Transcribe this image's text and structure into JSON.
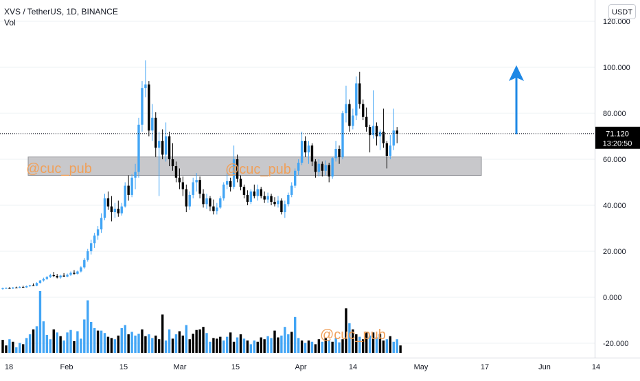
{
  "header": {
    "symbol_line": "XVS / TetherUS, 1D, BINANCE",
    "indicator_label": "Vol",
    "currency_button": "USDT"
  },
  "price_tag": {
    "value": "71.120",
    "countdown": "13:20:50"
  },
  "watermarks": [
    "@cuc_pub",
    "@cuc_pub",
    "@cuc_pub"
  ],
  "colors": {
    "up": "#42a5f5",
    "down": "#000000",
    "zone": "#b8b9bd",
    "arrow": "#1e88e5",
    "watermark": "#f0a05a",
    "price_tag_bg": "#000000",
    "grid": "#eef0f3"
  },
  "chart_data": {
    "type": "candlestick",
    "symbol": "XVS / TetherUS",
    "interval": "1D",
    "exchange": "BINANCE",
    "price_axis": {
      "ticks": [
        "120.000",
        "100.000",
        "80.000",
        "60.000",
        "40.000",
        "20.000",
        "0.000",
        "-20.000"
      ],
      "tick_values": [
        120,
        100,
        80,
        60,
        40,
        20,
        0,
        -20
      ],
      "range": [
        -20,
        122
      ]
    },
    "time_axis": {
      "ticks": [
        "18",
        "Feb",
        "15",
        "Mar",
        "15",
        "Apr",
        "14",
        "May",
        "17",
        "Jun",
        "14"
      ]
    },
    "last_price": 71.12,
    "support_zone": {
      "low": 53,
      "high": 61
    },
    "annotation": "up-arrow",
    "candles": [
      {
        "o": 3.6,
        "h": 4.2,
        "l": 3.3,
        "c": 3.9
      },
      {
        "o": 3.9,
        "h": 4.3,
        "l": 3.6,
        "c": 4.0
      },
      {
        "o": 4.0,
        "h": 4.4,
        "l": 3.7,
        "c": 3.8
      },
      {
        "o": 3.8,
        "h": 4.5,
        "l": 3.6,
        "c": 4.2
      },
      {
        "o": 4.2,
        "h": 4.6,
        "l": 3.9,
        "c": 4.1
      },
      {
        "o": 4.1,
        "h": 4.8,
        "l": 3.9,
        "c": 4.5
      },
      {
        "o": 4.5,
        "h": 5.0,
        "l": 4.2,
        "c": 4.3
      },
      {
        "o": 4.3,
        "h": 5.1,
        "l": 4.1,
        "c": 4.8
      },
      {
        "o": 4.8,
        "h": 5.4,
        "l": 4.5,
        "c": 5.2
      },
      {
        "o": 5.2,
        "h": 6.0,
        "l": 4.9,
        "c": 5.0
      },
      {
        "o": 5.0,
        "h": 6.5,
        "l": 4.8,
        "c": 6.2
      },
      {
        "o": 6.2,
        "h": 7.5,
        "l": 6.0,
        "c": 7.3
      },
      {
        "o": 7.3,
        "h": 8.5,
        "l": 6.8,
        "c": 8.0
      },
      {
        "o": 8.0,
        "h": 9.2,
        "l": 7.5,
        "c": 8.8
      },
      {
        "o": 8.8,
        "h": 10.2,
        "l": 8.4,
        "c": 9.6
      },
      {
        "o": 9.6,
        "h": 11.0,
        "l": 8.8,
        "c": 9.2
      },
      {
        "o": 9.2,
        "h": 10.1,
        "l": 8.2,
        "c": 8.6
      },
      {
        "o": 8.6,
        "h": 9.8,
        "l": 8.1,
        "c": 9.4
      },
      {
        "o": 9.4,
        "h": 10.5,
        "l": 8.9,
        "c": 9.0
      },
      {
        "o": 9.0,
        "h": 10.3,
        "l": 8.7,
        "c": 9.8
      },
      {
        "o": 9.8,
        "h": 11.2,
        "l": 9.3,
        "c": 10.6
      },
      {
        "o": 10.6,
        "h": 11.8,
        "l": 9.8,
        "c": 10.2
      },
      {
        "o": 10.2,
        "h": 11.6,
        "l": 9.9,
        "c": 11.2
      },
      {
        "o": 11.2,
        "h": 13.5,
        "l": 10.8,
        "c": 13.0
      },
      {
        "o": 13.0,
        "h": 17.0,
        "l": 12.4,
        "c": 16.2
      },
      {
        "o": 16.2,
        "h": 21.0,
        "l": 15.5,
        "c": 20.0
      },
      {
        "o": 20.0,
        "h": 25.0,
        "l": 18.6,
        "c": 23.5
      },
      {
        "o": 23.5,
        "h": 28.0,
        "l": 21.5,
        "c": 26.8
      },
      {
        "o": 26.8,
        "h": 31.0,
        "l": 25.0,
        "c": 29.5
      },
      {
        "o": 29.5,
        "h": 36.5,
        "l": 28.0,
        "c": 34.5
      },
      {
        "o": 34.5,
        "h": 45.0,
        "l": 33.5,
        "c": 43.0
      },
      {
        "o": 43.0,
        "h": 46.0,
        "l": 38.0,
        "c": 39.5
      },
      {
        "o": 39.5,
        "h": 44.0,
        "l": 33.0,
        "c": 37.0
      },
      {
        "o": 37.0,
        "h": 41.0,
        "l": 34.5,
        "c": 38.5
      },
      {
        "o": 38.5,
        "h": 42.0,
        "l": 35.0,
        "c": 36.5
      },
      {
        "o": 36.5,
        "h": 41.0,
        "l": 35.5,
        "c": 39.5
      },
      {
        "o": 39.5,
        "h": 50.0,
        "l": 39.0,
        "c": 48.5
      },
      {
        "o": 48.5,
        "h": 53.0,
        "l": 42.0,
        "c": 44.5
      },
      {
        "o": 44.5,
        "h": 53.5,
        "l": 43.5,
        "c": 52.0
      },
      {
        "o": 52.0,
        "h": 58.0,
        "l": 47.0,
        "c": 54.5
      },
      {
        "o": 54.5,
        "h": 78.0,
        "l": 52.0,
        "c": 75.0
      },
      {
        "o": 75.0,
        "h": 94.0,
        "l": 72.0,
        "c": 91.0
      },
      {
        "o": 91.0,
        "h": 103.0,
        "l": 87.0,
        "c": 92.5
      },
      {
        "o": 92.5,
        "h": 94.0,
        "l": 70.0,
        "c": 72.5
      },
      {
        "o": 72.5,
        "h": 84.0,
        "l": 68.0,
        "c": 78.0
      },
      {
        "o": 78.0,
        "h": 80.5,
        "l": 61.0,
        "c": 65.0
      },
      {
        "o": 65.0,
        "h": 72.0,
        "l": 44.0,
        "c": 68.0
      },
      {
        "o": 68.0,
        "h": 73.0,
        "l": 60.0,
        "c": 62.0
      },
      {
        "o": 62.0,
        "h": 76.0,
        "l": 59.0,
        "c": 70.0
      },
      {
        "o": 70.0,
        "h": 72.0,
        "l": 57.0,
        "c": 60.0
      },
      {
        "o": 60.0,
        "h": 67.0,
        "l": 55.0,
        "c": 57.0
      },
      {
        "o": 57.0,
        "h": 59.0,
        "l": 50.0,
        "c": 52.0
      },
      {
        "o": 52.0,
        "h": 56.0,
        "l": 47.0,
        "c": 50.0
      },
      {
        "o": 50.0,
        "h": 52.5,
        "l": 44.0,
        "c": 47.0
      },
      {
        "o": 47.0,
        "h": 49.0,
        "l": 37.0,
        "c": 39.5
      },
      {
        "o": 39.5,
        "h": 46.0,
        "l": 38.0,
        "c": 44.5
      },
      {
        "o": 44.5,
        "h": 52.0,
        "l": 43.0,
        "c": 50.0
      },
      {
        "o": 50.0,
        "h": 54.0,
        "l": 46.0,
        "c": 51.0
      },
      {
        "o": 51.0,
        "h": 52.5,
        "l": 43.0,
        "c": 45.0
      },
      {
        "o": 45.0,
        "h": 47.0,
        "l": 39.0,
        "c": 40.5
      },
      {
        "o": 40.5,
        "h": 45.0,
        "l": 38.5,
        "c": 43.0
      },
      {
        "o": 43.0,
        "h": 44.0,
        "l": 37.5,
        "c": 39.5
      },
      {
        "o": 39.5,
        "h": 42.5,
        "l": 36.0,
        "c": 37.5
      },
      {
        "o": 37.5,
        "h": 41.0,
        "l": 36.0,
        "c": 39.0
      },
      {
        "o": 39.0,
        "h": 44.0,
        "l": 38.5,
        "c": 43.0
      },
      {
        "o": 43.0,
        "h": 50.0,
        "l": 42.0,
        "c": 49.0
      },
      {
        "o": 49.0,
        "h": 56.0,
        "l": 47.0,
        "c": 50.5
      },
      {
        "o": 50.5,
        "h": 52.0,
        "l": 46.0,
        "c": 48.0
      },
      {
        "o": 48.0,
        "h": 66.0,
        "l": 47.0,
        "c": 60.0
      },
      {
        "o": 60.0,
        "h": 62.0,
        "l": 50.0,
        "c": 51.5
      },
      {
        "o": 51.5,
        "h": 53.0,
        "l": 46.5,
        "c": 48.0
      },
      {
        "o": 48.0,
        "h": 49.0,
        "l": 43.0,
        "c": 44.5
      },
      {
        "o": 44.5,
        "h": 46.5,
        "l": 40.0,
        "c": 41.5
      },
      {
        "o": 41.5,
        "h": 47.0,
        "l": 40.5,
        "c": 46.0
      },
      {
        "o": 46.0,
        "h": 49.0,
        "l": 43.0,
        "c": 44.0
      },
      {
        "o": 44.0,
        "h": 49.0,
        "l": 42.0,
        "c": 47.0
      },
      {
        "o": 47.0,
        "h": 48.0,
        "l": 43.0,
        "c": 44.0
      },
      {
        "o": 44.0,
        "h": 46.0,
        "l": 41.0,
        "c": 42.5
      },
      {
        "o": 42.5,
        "h": 45.5,
        "l": 41.0,
        "c": 44.0
      },
      {
        "o": 44.0,
        "h": 45.0,
        "l": 40.0,
        "c": 41.5
      },
      {
        "o": 41.5,
        "h": 43.5,
        "l": 39.5,
        "c": 40.5
      },
      {
        "o": 40.5,
        "h": 44.0,
        "l": 39.0,
        "c": 42.0
      },
      {
        "o": 42.0,
        "h": 43.0,
        "l": 36.0,
        "c": 37.0
      },
      {
        "o": 37.0,
        "h": 42.0,
        "l": 34.5,
        "c": 40.5
      },
      {
        "o": 40.5,
        "h": 45.5,
        "l": 39.5,
        "c": 44.5
      },
      {
        "o": 44.5,
        "h": 50.0,
        "l": 43.5,
        "c": 48.5
      },
      {
        "o": 48.5,
        "h": 56.0,
        "l": 47.5,
        "c": 55.0
      },
      {
        "o": 55.0,
        "h": 60.0,
        "l": 53.0,
        "c": 58.5
      },
      {
        "o": 58.5,
        "h": 72.0,
        "l": 57.5,
        "c": 68.0
      },
      {
        "o": 68.0,
        "h": 70.0,
        "l": 61.0,
        "c": 63.0
      },
      {
        "o": 63.0,
        "h": 68.0,
        "l": 58.0,
        "c": 66.0
      },
      {
        "o": 66.0,
        "h": 67.0,
        "l": 57.0,
        "c": 59.0
      },
      {
        "o": 59.0,
        "h": 60.0,
        "l": 52.0,
        "c": 54.5
      },
      {
        "o": 54.5,
        "h": 60.0,
        "l": 52.5,
        "c": 58.0
      },
      {
        "o": 58.0,
        "h": 59.0,
        "l": 52.5,
        "c": 55.0
      },
      {
        "o": 55.0,
        "h": 59.5,
        "l": 53.0,
        "c": 57.5
      },
      {
        "o": 57.5,
        "h": 58.5,
        "l": 50.0,
        "c": 52.5
      },
      {
        "o": 52.5,
        "h": 61.0,
        "l": 51.5,
        "c": 60.5
      },
      {
        "o": 60.5,
        "h": 68.0,
        "l": 59.0,
        "c": 64.5
      },
      {
        "o": 64.5,
        "h": 66.0,
        "l": 58.0,
        "c": 61.0
      },
      {
        "o": 61.0,
        "h": 81.0,
        "l": 60.0,
        "c": 80.0
      },
      {
        "o": 80.0,
        "h": 92.0,
        "l": 76.0,
        "c": 84.0
      },
      {
        "o": 84.0,
        "h": 86.0,
        "l": 72.0,
        "c": 74.5
      },
      {
        "o": 74.5,
        "h": 82.0,
        "l": 73.0,
        "c": 79.0
      },
      {
        "o": 79.0,
        "h": 96.0,
        "l": 77.0,
        "c": 93.0
      },
      {
        "o": 93.0,
        "h": 98.0,
        "l": 82.0,
        "c": 84.0
      },
      {
        "o": 84.0,
        "h": 86.0,
        "l": 77.0,
        "c": 78.5
      },
      {
        "o": 78.5,
        "h": 82.5,
        "l": 72.0,
        "c": 74.0
      },
      {
        "o": 74.0,
        "h": 75.0,
        "l": 63.0,
        "c": 70.5
      },
      {
        "o": 70.5,
        "h": 90.0,
        "l": 69.0,
        "c": 74.5
      },
      {
        "o": 74.5,
        "h": 76.0,
        "l": 66.0,
        "c": 70.0
      },
      {
        "o": 70.0,
        "h": 73.0,
        "l": 64.0,
        "c": 72.0
      },
      {
        "o": 72.0,
        "h": 82.0,
        "l": 65.0,
        "c": 67.0
      },
      {
        "o": 67.0,
        "h": 68.0,
        "l": 56.0,
        "c": 61.5
      },
      {
        "o": 61.5,
        "h": 70.5,
        "l": 60.0,
        "c": 66.0
      },
      {
        "o": 66.0,
        "h": 82.0,
        "l": 64.0,
        "c": 72.5
      },
      {
        "o": 72.5,
        "h": 74.0,
        "l": 67.0,
        "c": 71.12
      }
    ],
    "volume": [
      {
        "v": 0.21,
        "up": false
      },
      {
        "v": 0.12,
        "up": false
      },
      {
        "v": 0.22,
        "up": true
      },
      {
        "v": 0.18,
        "up": false
      },
      {
        "v": 0.09,
        "up": true
      },
      {
        "v": 0.16,
        "up": true
      },
      {
        "v": 0.14,
        "up": false
      },
      {
        "v": 0.24,
        "up": true
      },
      {
        "v": 0.3,
        "up": true
      },
      {
        "v": 0.38,
        "up": false
      },
      {
        "v": 0.43,
        "up": true
      },
      {
        "v": 1.0,
        "up": true
      },
      {
        "v": 0.51,
        "up": true
      },
      {
        "v": 0.29,
        "up": true
      },
      {
        "v": 0.22,
        "up": true
      },
      {
        "v": 0.38,
        "up": false
      },
      {
        "v": 0.33,
        "up": true
      },
      {
        "v": 0.27,
        "up": false
      },
      {
        "v": 0.2,
        "up": true
      },
      {
        "v": 0.33,
        "up": true
      },
      {
        "v": 0.37,
        "up": true
      },
      {
        "v": 0.19,
        "up": false
      },
      {
        "v": 0.35,
        "up": true
      },
      {
        "v": 0.23,
        "up": true
      },
      {
        "v": 0.54,
        "up": true
      },
      {
        "v": 0.85,
        "up": true
      },
      {
        "v": 0.5,
        "up": true
      },
      {
        "v": 0.4,
        "up": true
      },
      {
        "v": 0.36,
        "up": false
      },
      {
        "v": 0.36,
        "up": true
      },
      {
        "v": 0.32,
        "up": true
      },
      {
        "v": 0.26,
        "up": false
      },
      {
        "v": 0.24,
        "up": false
      },
      {
        "v": 0.22,
        "up": true
      },
      {
        "v": 0.28,
        "up": false
      },
      {
        "v": 0.4,
        "up": true
      },
      {
        "v": 0.45,
        "up": true
      },
      {
        "v": 0.3,
        "up": false
      },
      {
        "v": 0.34,
        "up": true
      },
      {
        "v": 0.28,
        "up": true
      },
      {
        "v": 0.31,
        "up": true
      },
      {
        "v": 0.38,
        "up": false
      },
      {
        "v": 0.27,
        "up": false
      },
      {
        "v": 0.3,
        "up": true
      },
      {
        "v": 0.24,
        "up": true
      },
      {
        "v": 0.28,
        "up": false
      },
      {
        "v": 0.22,
        "up": false
      },
      {
        "v": 0.62,
        "up": false
      },
      {
        "v": 0.2,
        "up": true
      },
      {
        "v": 0.38,
        "up": true
      },
      {
        "v": 0.23,
        "up": false
      },
      {
        "v": 0.3,
        "up": true
      },
      {
        "v": 0.35,
        "up": false
      },
      {
        "v": 0.28,
        "up": false
      },
      {
        "v": 0.45,
        "up": true
      },
      {
        "v": 0.22,
        "up": false
      },
      {
        "v": 0.31,
        "up": false
      },
      {
        "v": 0.37,
        "up": false
      },
      {
        "v": 0.38,
        "up": false
      },
      {
        "v": 0.42,
        "up": false
      },
      {
        "v": 0.32,
        "up": true
      },
      {
        "v": 0.18,
        "up": true
      },
      {
        "v": 0.24,
        "up": false
      },
      {
        "v": 0.23,
        "up": false
      },
      {
        "v": 0.26,
        "up": false
      },
      {
        "v": 0.2,
        "up": true
      },
      {
        "v": 0.26,
        "up": true
      },
      {
        "v": 0.33,
        "up": false
      },
      {
        "v": 0.18,
        "up": false
      },
      {
        "v": 0.25,
        "up": true
      },
      {
        "v": 0.3,
        "up": false
      },
      {
        "v": 0.23,
        "up": true
      },
      {
        "v": 0.2,
        "up": false
      },
      {
        "v": 0.14,
        "up": true
      },
      {
        "v": 0.2,
        "up": true
      },
      {
        "v": 0.18,
        "up": false
      },
      {
        "v": 0.25,
        "up": false
      },
      {
        "v": 0.22,
        "up": false
      },
      {
        "v": 0.27,
        "up": true
      },
      {
        "v": 0.24,
        "up": true
      },
      {
        "v": 0.36,
        "up": false
      },
      {
        "v": 0.25,
        "up": false
      },
      {
        "v": 0.28,
        "up": true
      },
      {
        "v": 0.42,
        "up": true
      },
      {
        "v": 0.3,
        "up": true
      },
      {
        "v": 0.34,
        "up": false
      },
      {
        "v": 0.58,
        "up": true
      },
      {
        "v": 0.24,
        "up": true
      },
      {
        "v": 0.2,
        "up": false
      },
      {
        "v": 0.16,
        "up": true
      },
      {
        "v": 0.2,
        "up": false
      },
      {
        "v": 0.18,
        "up": true
      },
      {
        "v": 0.14,
        "up": false
      },
      {
        "v": 0.22,
        "up": false
      },
      {
        "v": 0.18,
        "up": true
      },
      {
        "v": 0.24,
        "up": false
      },
      {
        "v": 0.2,
        "up": true
      },
      {
        "v": 0.18,
        "up": false
      },
      {
        "v": 0.24,
        "up": true
      },
      {
        "v": 0.17,
        "up": true
      },
      {
        "v": 0.22,
        "up": false
      },
      {
        "v": 0.72,
        "up": false
      },
      {
        "v": 0.48,
        "up": true
      },
      {
        "v": 0.38,
        "up": false
      },
      {
        "v": 0.3,
        "up": false
      },
      {
        "v": 0.26,
        "up": true
      },
      {
        "v": 0.22,
        "up": false
      },
      {
        "v": 0.34,
        "up": false
      },
      {
        "v": 0.28,
        "up": true
      },
      {
        "v": 0.33,
        "up": false
      },
      {
        "v": 0.25,
        "up": true
      },
      {
        "v": 0.31,
        "up": false
      },
      {
        "v": 0.2,
        "up": false
      },
      {
        "v": 0.22,
        "up": true
      },
      {
        "v": 0.27,
        "up": false
      },
      {
        "v": 0.18,
        "up": true
      },
      {
        "v": 0.22,
        "up": true
      },
      {
        "v": 0.12,
        "up": false
      }
    ]
  }
}
